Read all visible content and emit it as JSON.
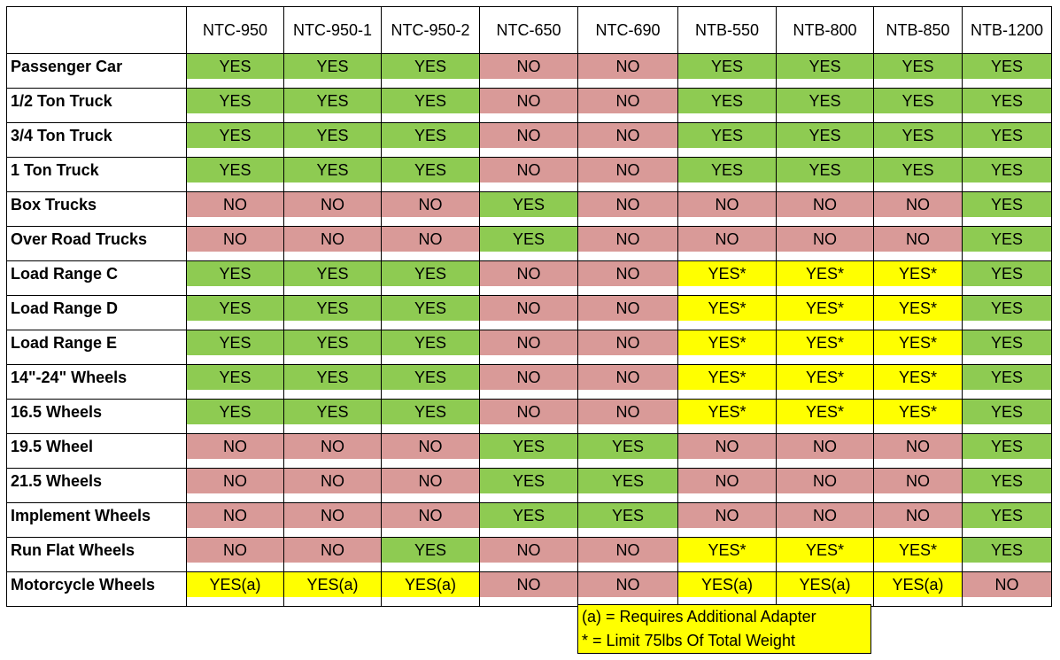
{
  "table": {
    "headers": [
      "",
      "NTC-950",
      "NTC-950-1",
      "NTC-950-2",
      "NTC-650",
      "NTC-690",
      "NTB-550",
      "NTB-800",
      "NTB-850",
      "NTB-1200"
    ],
    "cell_colors": {
      "YES": "#8ecb52",
      "NO": "#d99a98",
      "YES*": "#ffff00",
      "YES(a)": "#ffff00"
    },
    "rows": [
      [
        "Passenger Car",
        "YES",
        "YES",
        "YES",
        "NO",
        "NO",
        "YES",
        "YES",
        "YES",
        "YES"
      ],
      [
        "1/2 Ton Truck",
        "YES",
        "YES",
        "YES",
        "NO",
        "NO",
        "YES",
        "YES",
        "YES",
        "YES"
      ],
      [
        "3/4 Ton Truck",
        "YES",
        "YES",
        "YES",
        "NO",
        "NO",
        "YES",
        "YES",
        "YES",
        "YES"
      ],
      [
        "1 Ton Truck",
        "YES",
        "YES",
        "YES",
        "NO",
        "NO",
        "YES",
        "YES",
        "YES",
        "YES"
      ],
      [
        "Box Trucks",
        "NO",
        "NO",
        "NO",
        "YES",
        "NO",
        "NO",
        "NO",
        "NO",
        "YES"
      ],
      [
        "Over Road Trucks",
        "NO",
        "NO",
        "NO",
        "YES",
        "NO",
        "NO",
        "NO",
        "NO",
        "YES"
      ],
      [
        "Load Range C",
        "YES",
        "YES",
        "YES",
        "NO",
        "NO",
        "YES*",
        "YES*",
        "YES*",
        "YES"
      ],
      [
        "Load Range D",
        "YES",
        "YES",
        "YES",
        "NO",
        "NO",
        "YES*",
        "YES*",
        "YES*",
        "YES"
      ],
      [
        "Load Range E",
        "YES",
        "YES",
        "YES",
        "NO",
        "NO",
        "YES*",
        "YES*",
        "YES*",
        "YES"
      ],
      [
        "14\"-24\" Wheels",
        "YES",
        "YES",
        "YES",
        "NO",
        "NO",
        "YES*",
        "YES*",
        "YES*",
        "YES"
      ],
      [
        "16.5 Wheels",
        "YES",
        "YES",
        "YES",
        "NO",
        "NO",
        "YES*",
        "YES*",
        "YES*",
        "YES"
      ],
      [
        "19.5 Wheel",
        "NO",
        "NO",
        "NO",
        "YES",
        "YES",
        "NO",
        "NO",
        "NO",
        "YES"
      ],
      [
        "21.5 Wheels",
        "NO",
        "NO",
        "NO",
        "YES",
        "YES",
        "NO",
        "NO",
        "NO",
        "YES"
      ],
      [
        "Implement Wheels",
        "NO",
        "NO",
        "NO",
        "YES",
        "YES",
        "NO",
        "NO",
        "NO",
        "YES"
      ],
      [
        "Run Flat Wheels",
        "NO",
        "NO",
        "YES",
        "NO",
        "NO",
        "YES*",
        "YES*",
        "YES*",
        "YES"
      ],
      [
        "Motorcycle Wheels",
        "YES(a)",
        "YES(a)",
        "YES(a)",
        "NO",
        "NO",
        "YES(a)",
        "YES(a)",
        "YES(a)",
        "NO"
      ]
    ]
  },
  "legend": {
    "notes": [
      "(a) = Requires Additional Adapter",
      "* = Limit 75lbs Of Total Weight"
    ]
  }
}
